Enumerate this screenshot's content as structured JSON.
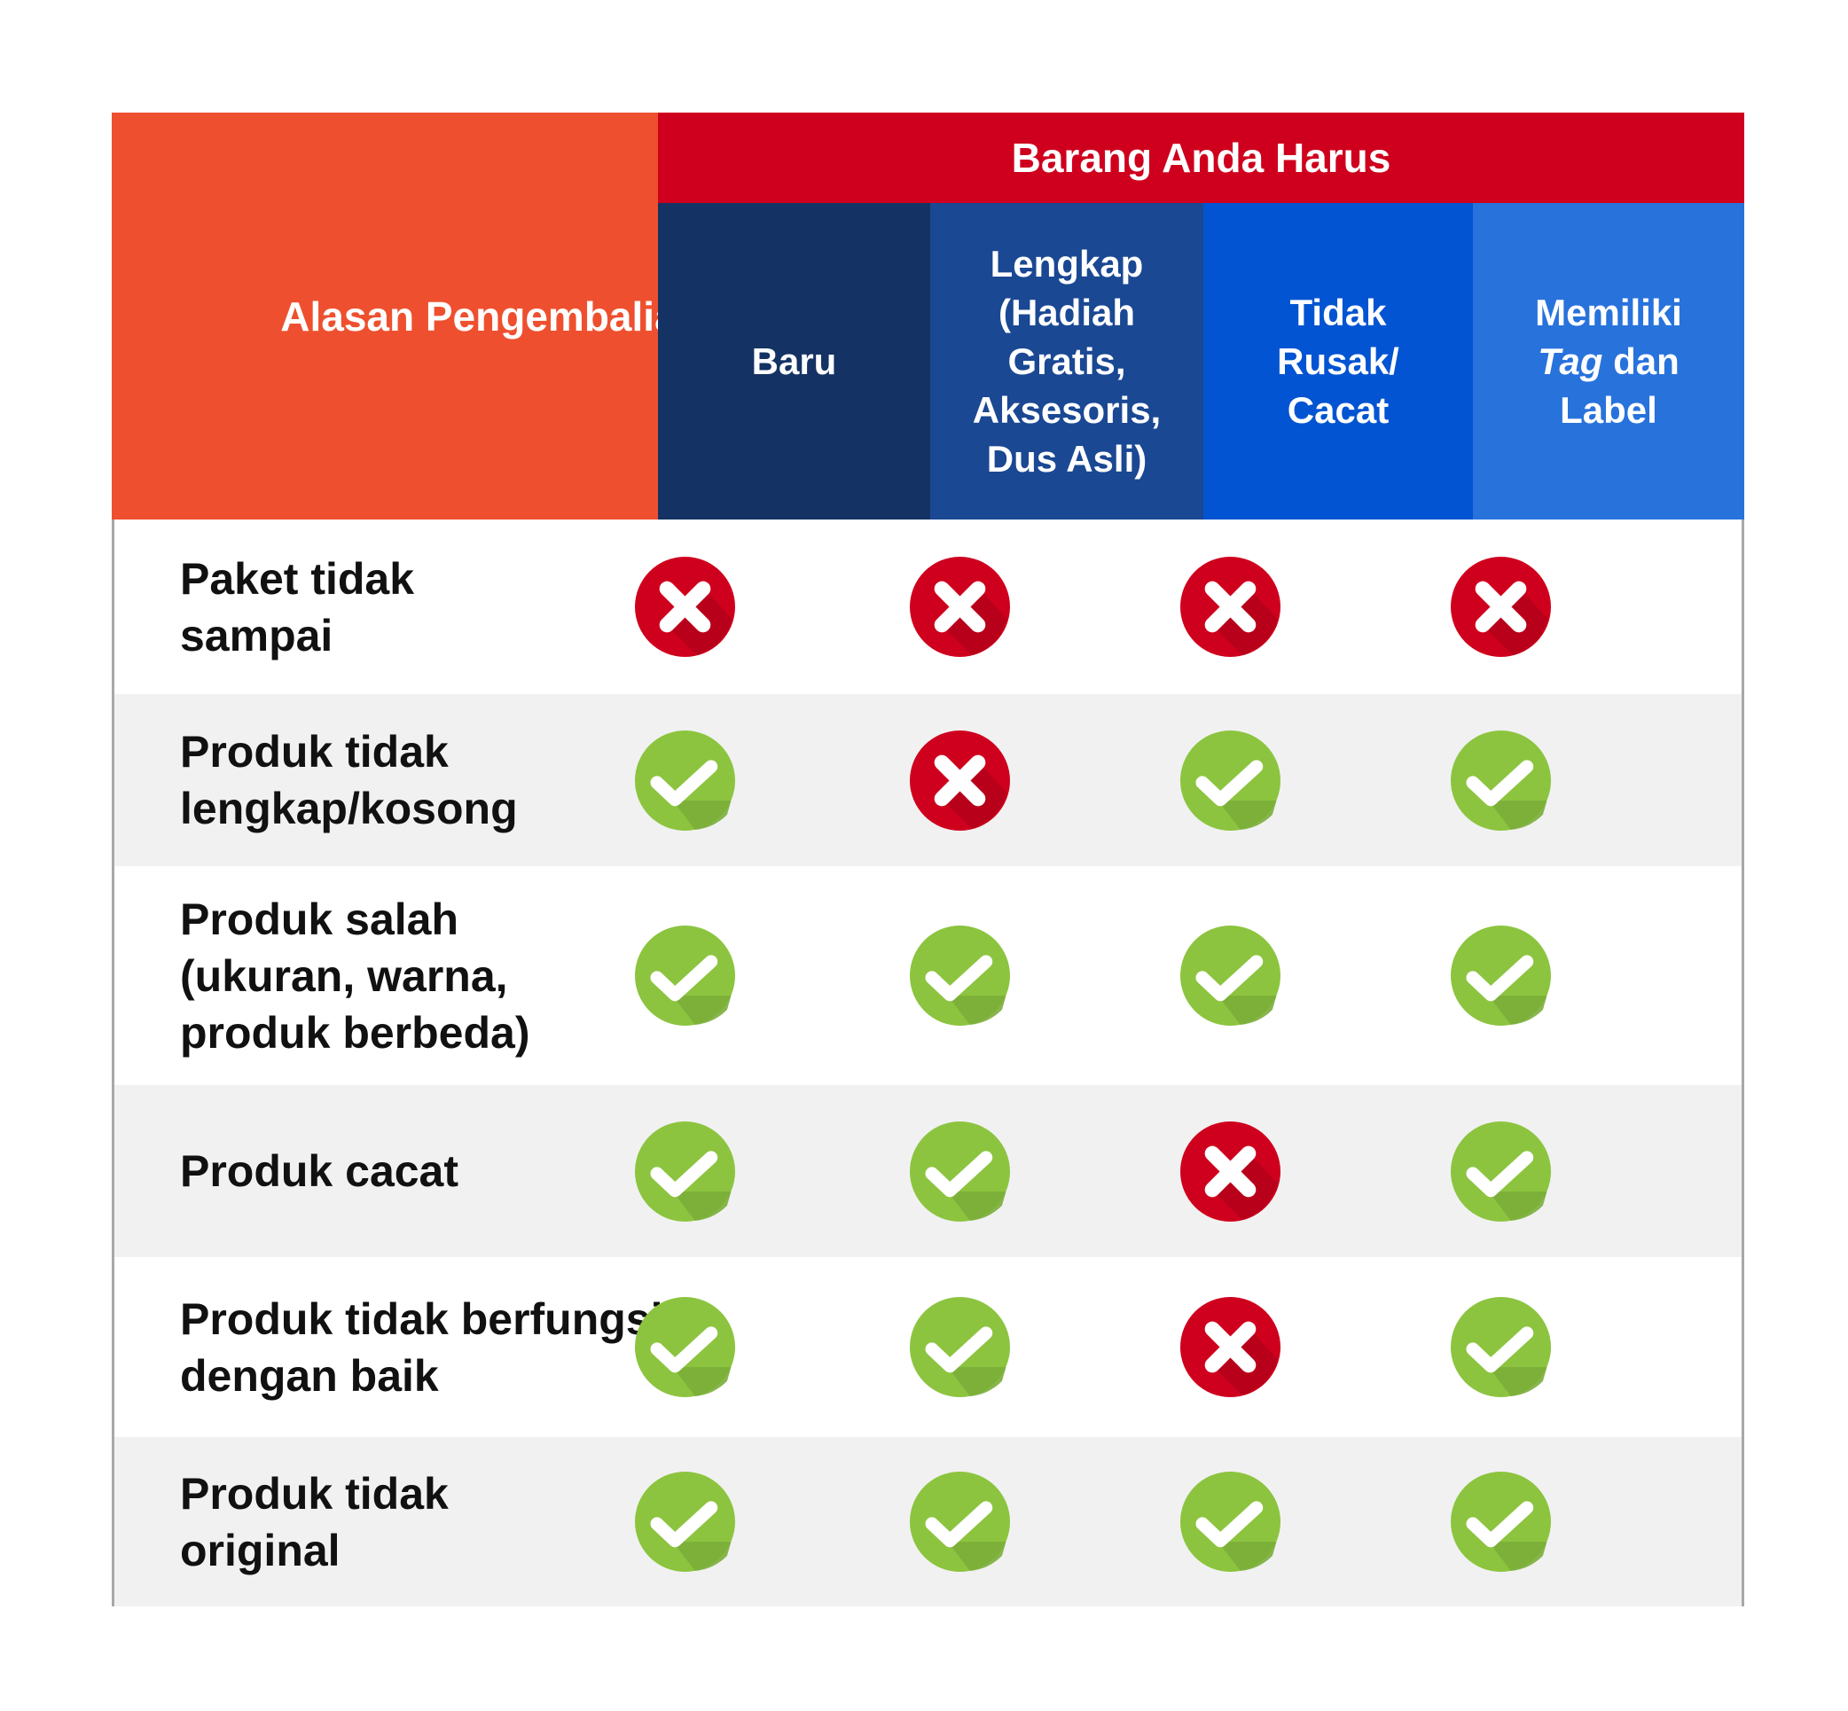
{
  "header": {
    "reason_label": "Alasan Pengembalian",
    "group_label": "Barang Anda Harus",
    "columns": [
      {
        "label": "Baru",
        "color": "#143263"
      },
      {
        "label": "Lengkap (Hadiah Gratis, Aksesoris, Dus Asli)",
        "color": "#1a4893"
      },
      {
        "label": "Tidak Rusak/ Cacat",
        "color": "#0354d2"
      },
      {
        "label_italic": "Tag",
        "label_pre": "Memiliki",
        "label_post": "dan Label",
        "color": "#2872dc"
      }
    ]
  },
  "rows": [
    {
      "reason": "Paket tidak sampai",
      "values": [
        "cross",
        "cross",
        "cross",
        "cross"
      ]
    },
    {
      "reason": "Produk tidak lengkap/kosong",
      "values": [
        "check",
        "cross",
        "check",
        "check"
      ]
    },
    {
      "reason": "Produk salah (ukuran, warna, produk berbeda)",
      "values": [
        "check",
        "check",
        "check",
        "check"
      ]
    },
    {
      "reason": "Produk cacat",
      "values": [
        "check",
        "check",
        "cross",
        "check"
      ]
    },
    {
      "reason": "Produk tidak berfungsi dengan baik",
      "values": [
        "check",
        "check",
        "cross",
        "check"
      ]
    },
    {
      "reason": "Produk tidak original",
      "values": [
        "check",
        "check",
        "check",
        "check"
      ]
    }
  ],
  "colors": {
    "check": "#8cc43f",
    "cross": "#cf001d",
    "reason_header": "#ee502f",
    "group_header": "#cf001d"
  }
}
